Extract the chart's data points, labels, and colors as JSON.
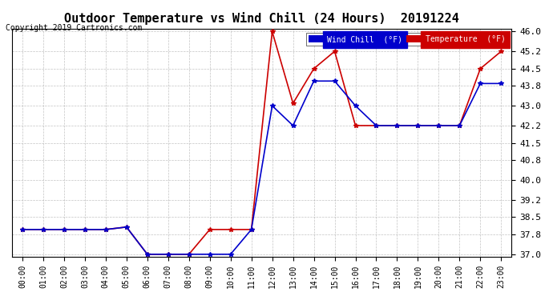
{
  "title": "Outdoor Temperature vs Wind Chill (24 Hours)  20191224",
  "copyright": "Copyright 2019 Cartronics.com",
  "background_color": "#ffffff",
  "plot_bg_color": "#ffffff",
  "grid_color": "#aaaaaa",
  "x_labels": [
    "00:00",
    "01:00",
    "02:00",
    "03:00",
    "04:00",
    "05:00",
    "06:00",
    "07:00",
    "08:00",
    "09:00",
    "10:00",
    "11:00",
    "12:00",
    "13:00",
    "14:00",
    "15:00",
    "16:00",
    "17:00",
    "18:00",
    "19:00",
    "20:00",
    "21:00",
    "22:00",
    "23:00"
  ],
  "temperature": [
    38.0,
    38.0,
    38.0,
    38.0,
    38.0,
    38.1,
    37.0,
    37.0,
    37.0,
    38.0,
    38.0,
    38.0,
    46.0,
    43.1,
    44.5,
    45.2,
    42.2,
    42.2,
    42.2,
    42.2,
    42.2,
    42.2,
    44.5,
    45.2
  ],
  "wind_chill": [
    38.0,
    38.0,
    38.0,
    38.0,
    38.0,
    38.1,
    37.0,
    37.0,
    37.0,
    37.0,
    37.0,
    38.0,
    43.0,
    42.2,
    44.0,
    44.0,
    43.0,
    42.2,
    42.2,
    42.2,
    42.2,
    42.2,
    43.9,
    43.9
  ],
  "temp_color": "#cc0000",
  "wind_chill_color": "#0000cc",
  "ylim_min": 37.0,
  "ylim_max": 46.0,
  "yticks": [
    37.0,
    37.8,
    38.5,
    39.2,
    40.0,
    40.8,
    41.5,
    42.2,
    43.0,
    43.8,
    44.5,
    45.2,
    46.0
  ],
  "legend_wc_label": "Wind Chill  (°F)",
  "legend_temp_label": "Temperature  (°F)"
}
